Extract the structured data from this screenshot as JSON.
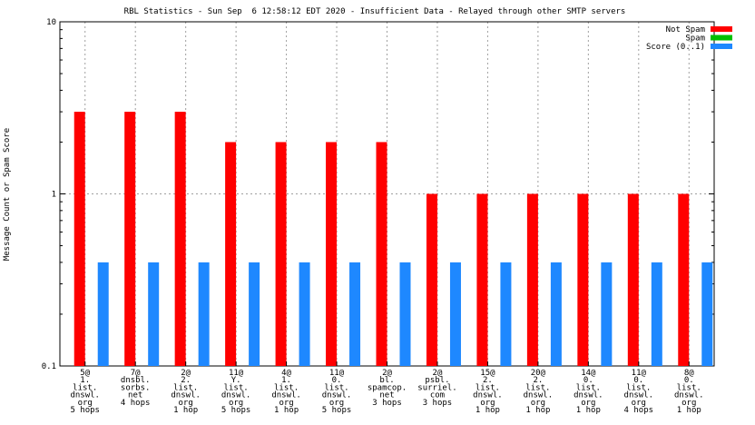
{
  "chart_data": {
    "type": "bar",
    "title": "RBL Statistics - Sun Sep  6 12:58:12 EDT 2020 - Insufficient Data - Relayed through other SMTP servers",
    "ylabel": "Message Count or Spam Score",
    "yscale": "log",
    "ylim": [
      0.1,
      10
    ],
    "yticks": [
      "0.1",
      "1",
      "10"
    ],
    "grid": true,
    "legend_position": "top-right",
    "categories": [
      [
        "5@",
        "1.",
        "list.",
        "dnswl.",
        "org",
        "5 hops"
      ],
      [
        "7@",
        "dnsbl.",
        "sorbs.",
        "net",
        "4 hops"
      ],
      [
        "2@",
        "2.",
        "list.",
        "dnswl.",
        "org",
        "1 hop"
      ],
      [
        "11@",
        "Y.",
        "list.",
        "dnswl.",
        "org",
        "5 hops"
      ],
      [
        "4@",
        "1.",
        "list.",
        "dnswl.",
        "org",
        "1 hop"
      ],
      [
        "11@",
        "0.",
        "list.",
        "dnswl.",
        "org",
        "5 hops"
      ],
      [
        "2@",
        "bl.",
        "spamcop.",
        "net",
        "3 hops"
      ],
      [
        "2@",
        "psbl.",
        "surriel.",
        "com",
        "3 hops"
      ],
      [
        "15@",
        "2.",
        "list.",
        "dnswl.",
        "org",
        "1 hop"
      ],
      [
        "20@",
        "2.",
        "list.",
        "dnswl.",
        "org",
        "1 hop"
      ],
      [
        "14@",
        "0.",
        "list.",
        "dnswl.",
        "org",
        "1 hop"
      ],
      [
        "11@",
        "0.",
        "list.",
        "dnswl.",
        "org",
        "4 hops"
      ],
      [
        "8@",
        "0.",
        "list.",
        "dnswl.",
        "org",
        "1 hop"
      ]
    ],
    "series": [
      {
        "name": "Not Spam",
        "color": "#ff0000",
        "values": [
          3,
          3,
          3,
          2,
          2,
          2,
          2,
          1,
          1,
          1,
          1,
          1,
          1
        ]
      },
      {
        "name": "Spam",
        "color": "#00c000",
        "values": [
          0,
          0,
          0,
          0,
          0,
          0,
          0,
          0,
          0,
          0,
          0,
          0,
          0
        ]
      },
      {
        "name": "Score (0..1)",
        "color": "#1e88ff",
        "values": [
          0.4,
          0.4,
          0.4,
          0.4,
          0.4,
          0.4,
          0.4,
          0.4,
          0.4,
          0.4,
          0.4,
          0.4,
          0.4
        ]
      }
    ]
  }
}
